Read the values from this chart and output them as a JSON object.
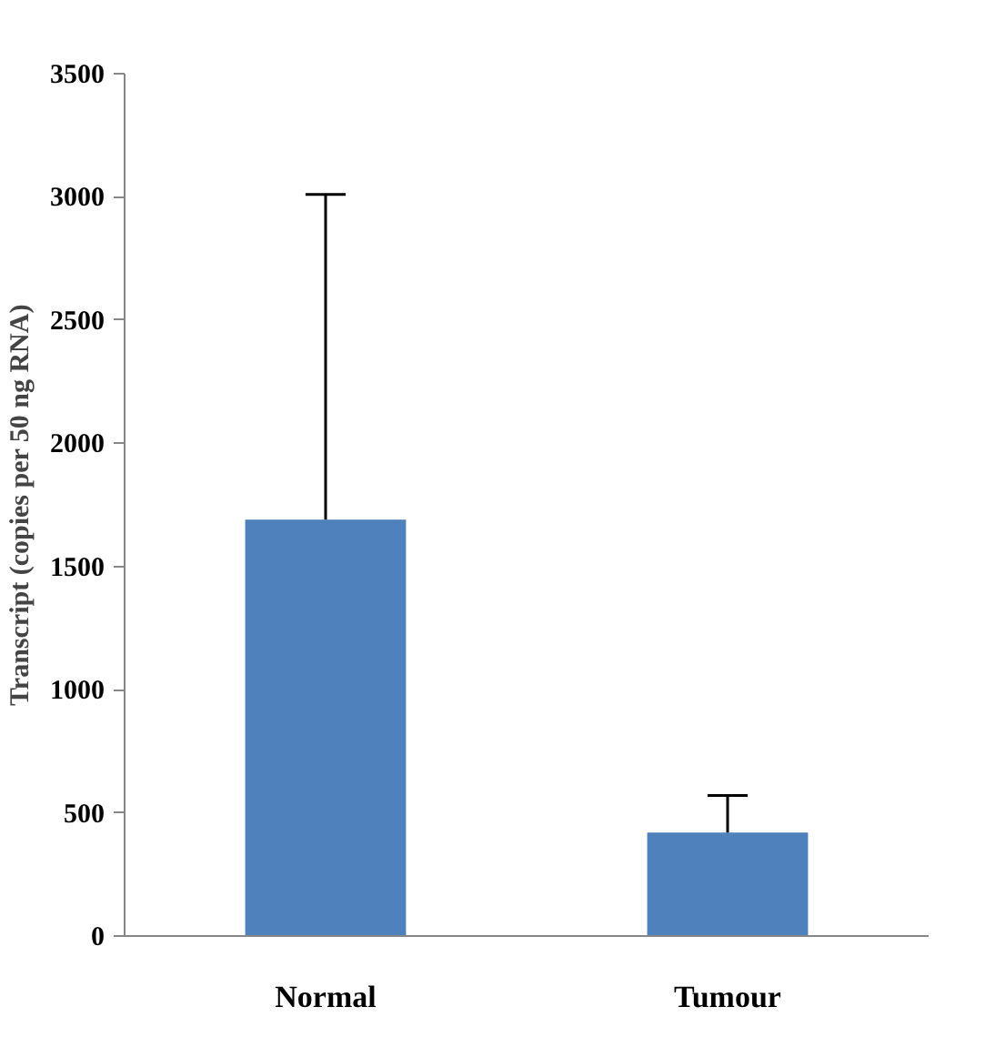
{
  "chart_data": {
    "type": "bar",
    "ylabel": "Transcript (copies per 50 ng RNA)",
    "categories": [
      "Normal",
      "Tumour"
    ],
    "values": [
      1690,
      420
    ],
    "color": "#4f81bd",
    "errors": [
      [
        1690,
        3010
      ],
      [
        420,
        570
      ]
    ],
    "ylim": [
      0,
      3500
    ],
    "yticks": [
      0,
      500,
      1000,
      1500,
      2000,
      2500,
      3000,
      3500
    ],
    "grid": false
  }
}
